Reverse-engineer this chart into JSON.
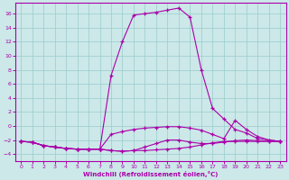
{
  "x": [
    0,
    1,
    2,
    3,
    4,
    5,
    6,
    7,
    8,
    9,
    10,
    11,
    12,
    13,
    14,
    15,
    16,
    17,
    18,
    19,
    20,
    21,
    22,
    23
  ],
  "line_peak": [
    -2.2,
    -2.3,
    -2.8,
    -3.0,
    -3.2,
    -3.3,
    -3.3,
    -3.3,
    7.2,
    12.0,
    15.8,
    16.0,
    16.2,
    16.5,
    16.8,
    15.5,
    8.0,
    2.5,
    1.0,
    -0.5,
    -1.0,
    -1.8,
    -2.0,
    -2.2
  ],
  "line_mid": [
    -2.2,
    -2.3,
    -2.8,
    -3.0,
    -3.2,
    -3.3,
    -3.3,
    -3.3,
    -1.2,
    -0.8,
    -0.5,
    -0.3,
    -0.2,
    -0.1,
    -0.1,
    -0.3,
    -0.6,
    -1.2,
    -1.8,
    0.8,
    -0.5,
    -1.5,
    -2.0,
    -2.2
  ],
  "line_low1": [
    -2.2,
    -2.3,
    -2.8,
    -3.0,
    -3.2,
    -3.3,
    -3.3,
    -3.3,
    -3.5,
    -3.6,
    -3.5,
    -3.0,
    -2.5,
    -2.0,
    -2.0,
    -2.3,
    -2.5,
    -2.5,
    -2.3,
    -2.1,
    -2.0,
    -2.1,
    -2.2,
    -2.2
  ],
  "line_low2": [
    -2.2,
    -2.3,
    -2.8,
    -3.0,
    -3.2,
    -3.3,
    -3.3,
    -3.3,
    -3.5,
    -3.6,
    -3.5,
    -3.5,
    -3.4,
    -3.3,
    -3.2,
    -3.0,
    -2.7,
    -2.4,
    -2.2,
    -2.2,
    -2.2,
    -2.2,
    -2.2,
    -2.2
  ],
  "bg_color": "#cce8e8",
  "line_color": "#aa00aa",
  "grid_color": "#99cccc",
  "xlabel": "Windchill (Refroidissement éolien,°C)",
  "xlim": [
    -0.5,
    23.5
  ],
  "ylim": [
    -5,
    17.5
  ],
  "yticks": [
    -4,
    -2,
    0,
    2,
    4,
    6,
    8,
    10,
    12,
    14,
    16
  ],
  "xticks": [
    0,
    1,
    2,
    3,
    4,
    5,
    6,
    7,
    8,
    9,
    10,
    11,
    12,
    13,
    14,
    15,
    16,
    17,
    18,
    19,
    20,
    21,
    22,
    23
  ]
}
